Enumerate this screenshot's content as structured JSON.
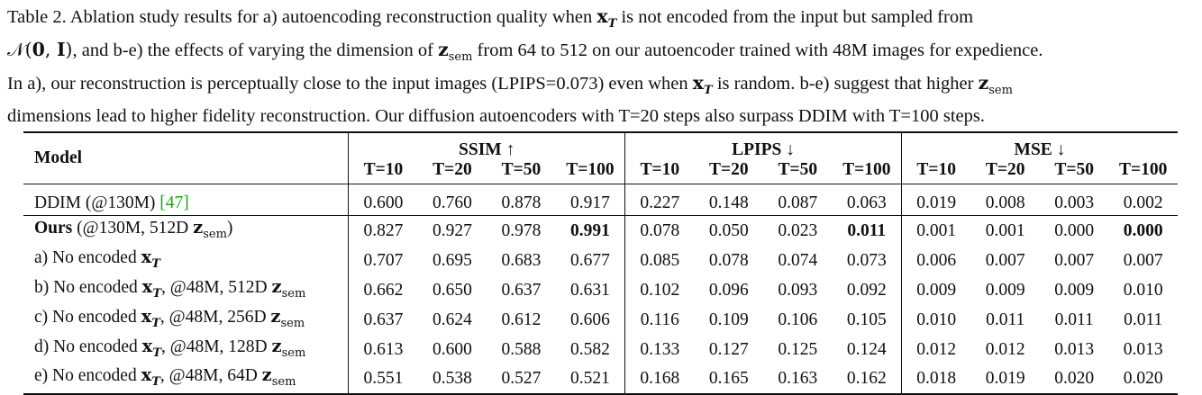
{
  "caption": {
    "line1": "Table 2.  Ablation study results for a) autoencoding reconstruction quality when x_T is not encoded from the input but sampled from",
    "line2": "𝒩(0, I), and b-e) the effects of varying the dimension of z_sem from 64 to 512 on our autoencoder trained with 48M images for expedience.",
    "line3": "In a), our reconstruction is perceptually close to the input images (LPIPS=0.073) even when x_T is random.  b-e) suggest that higher z_sem",
    "line4": "dimensions lead to higher fidelity reconstruction. Our diffusion autoencoders with T=20 steps also surpass DDIM with T=100 steps.",
    "p1_a": "Table 2.  Ablation study results for a) autoencoding reconstruction quality when ",
    "p1_b": " is not encoded from the input but sampled from",
    "p2_a": ", and b-e) the effects of varying the dimension of ",
    "p2_b": " from 64 to 512 on our autoencoder trained with 48M images for expedience.",
    "p3_a": "In a), our reconstruction is perceptually close to the input images (LPIPS=0.073) even when ",
    "p3_b": " is random.  b-e) suggest that higher ",
    "p4": "dimensions lead to higher fidelity reconstruction. Our diffusion autoencoders with T=20 steps also surpass DDIM with T=100 steps."
  },
  "table": {
    "model_header": "Model",
    "groups": [
      "SSIM ↑",
      "LPIPS ↓",
      "MSE ↓"
    ],
    "steps": [
      "T=10",
      "T=20",
      "T=50",
      "T=100"
    ],
    "rows": [
      {
        "pre": "DDIM (@130M) ",
        "cite": "[47]",
        "values": [
          "0.600",
          "0.760",
          "0.878",
          "0.917",
          "0.227",
          "0.148",
          "0.087",
          "0.063",
          "0.019",
          "0.008",
          "0.003",
          "0.002"
        ]
      },
      {
        "bold_name": "Ours",
        "pre": " (@130M, 512D ",
        "values": [
          "0.827",
          "0.927",
          "0.978",
          "0.991",
          "0.078",
          "0.050",
          "0.023",
          "0.011",
          "0.001",
          "0.001",
          "0.000",
          "0.000"
        ],
        "bold_idx": [
          3,
          7,
          11
        ]
      },
      {
        "pre": "a) No encoded ",
        "values": [
          "0.707",
          "0.695",
          "0.683",
          "0.677",
          "0.085",
          "0.078",
          "0.074",
          "0.073",
          "0.006",
          "0.007",
          "0.007",
          "0.007"
        ]
      },
      {
        "pre": "b) No encoded ",
        "mid": ", @48M, 512D ",
        "values": [
          "0.662",
          "0.650",
          "0.637",
          "0.631",
          "0.102",
          "0.096",
          "0.093",
          "0.092",
          "0.009",
          "0.009",
          "0.009",
          "0.010"
        ]
      },
      {
        "pre": "c) No encoded ",
        "mid": ", @48M, 256D ",
        "values": [
          "0.637",
          "0.624",
          "0.612",
          "0.606",
          "0.116",
          "0.109",
          "0.106",
          "0.105",
          "0.010",
          "0.011",
          "0.011",
          "0.011"
        ]
      },
      {
        "pre": "d) No encoded ",
        "mid": ", @48M, 128D ",
        "values": [
          "0.613",
          "0.600",
          "0.588",
          "0.582",
          "0.133",
          "0.127",
          "0.125",
          "0.124",
          "0.012",
          "0.012",
          "0.013",
          "0.013"
        ]
      },
      {
        "pre": "e) No encoded ",
        "mid": ", @48M, 64D ",
        "values": [
          "0.551",
          "0.538",
          "0.527",
          "0.521",
          "0.168",
          "0.165",
          "0.163",
          "0.162",
          "0.018",
          "0.019",
          "0.020",
          "0.020"
        ]
      }
    ]
  }
}
